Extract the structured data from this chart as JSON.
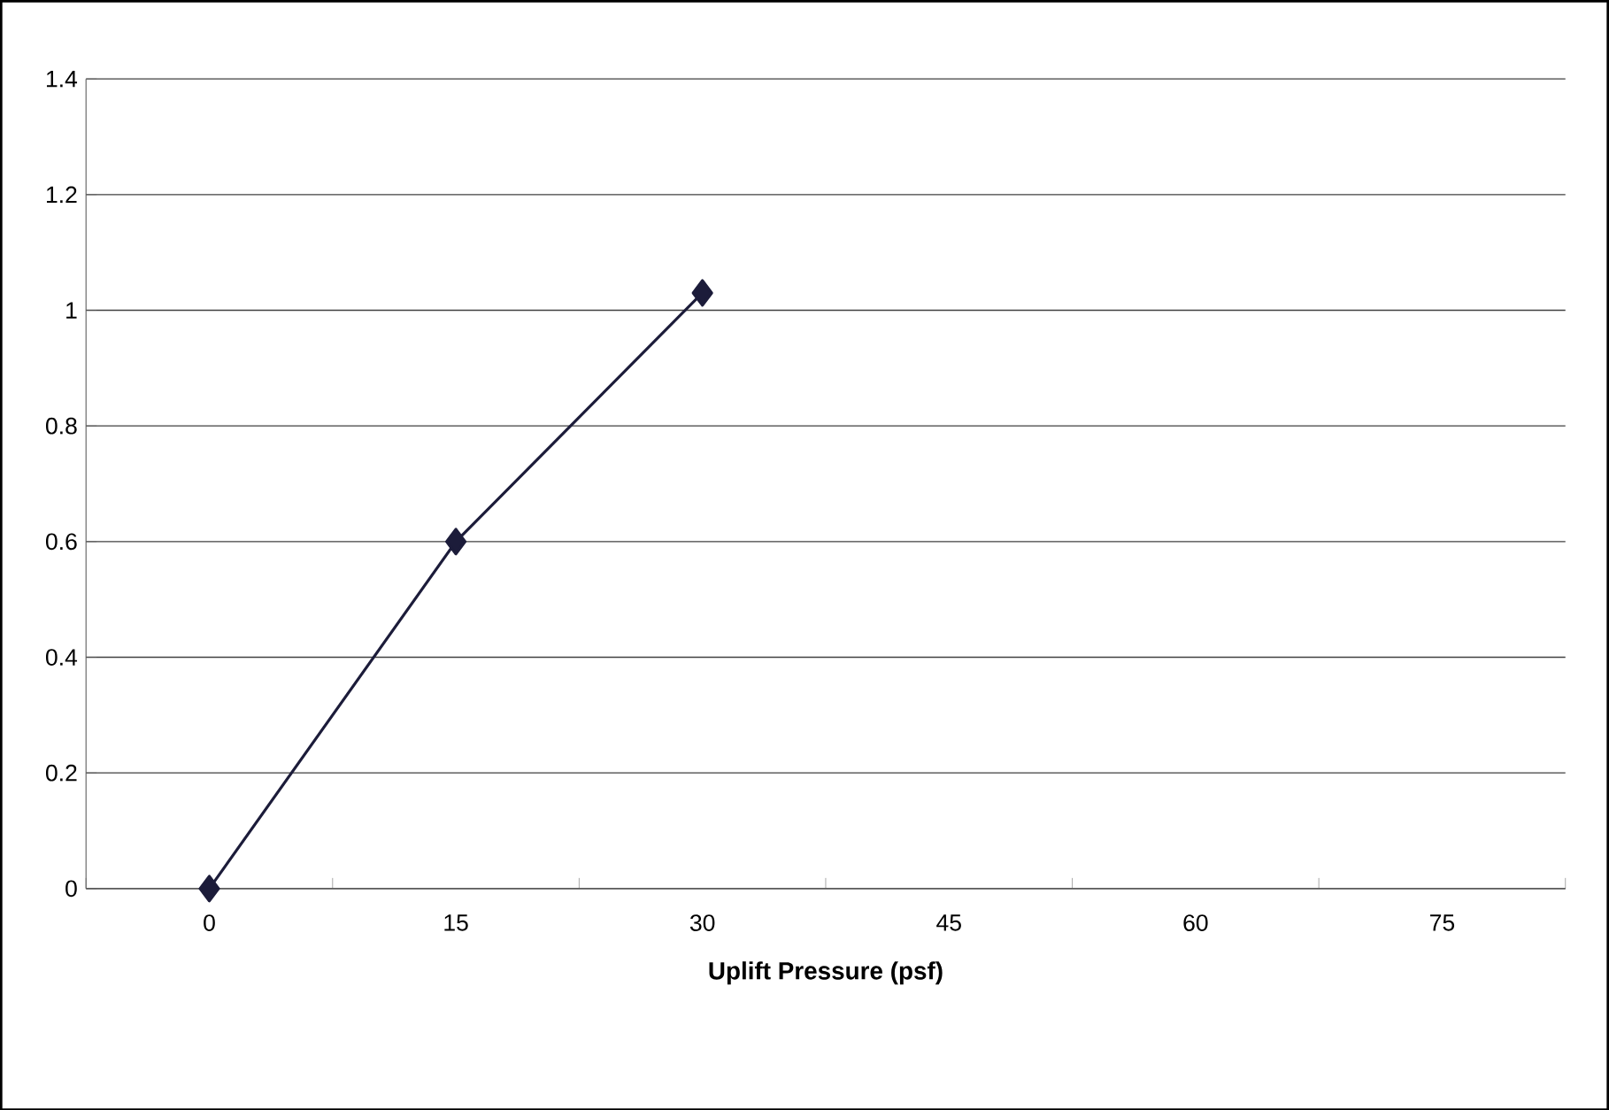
{
  "chart_data": {
    "type": "line",
    "xlabel": "Uplift Pressure (psf)",
    "categories": [
      "0",
      "15",
      "30",
      "45",
      "60",
      "75"
    ],
    "series": [
      {
        "color": "#1c1c3a",
        "values": [
          0,
          0.6,
          1.03,
          null,
          null,
          null
        ]
      }
    ],
    "ylim": [
      0,
      1.4
    ],
    "yticks": [
      0,
      0.2,
      0.4,
      0.6,
      0.8,
      1,
      1.2,
      1.4
    ],
    "grid": "y",
    "marker": "diamond",
    "line_style": "solid"
  }
}
